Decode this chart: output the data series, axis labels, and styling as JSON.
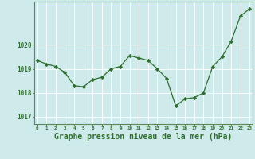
{
  "x": [
    0,
    1,
    2,
    3,
    4,
    5,
    6,
    7,
    8,
    9,
    10,
    11,
    12,
    13,
    14,
    15,
    16,
    17,
    18,
    19,
    20,
    21,
    22,
    23
  ],
  "y": [
    1019.35,
    1019.2,
    1019.1,
    1018.85,
    1018.3,
    1018.25,
    1018.55,
    1018.65,
    1019.0,
    1019.1,
    1019.55,
    1019.45,
    1019.35,
    1019.0,
    1018.6,
    1017.45,
    1017.75,
    1017.8,
    1018.0,
    1019.1,
    1019.5,
    1020.15,
    1021.2,
    1021.5
  ],
  "line_color": "#2d6e2d",
  "marker": "D",
  "marker_size": 2.2,
  "bg_color": "#ceeaea",
  "grid_color": "#b0d8d8",
  "axis_color": "#2d6e2d",
  "border_color": "#5a8a5a",
  "xlabel": "Graphe pression niveau de la mer (hPa)",
  "xlabel_fontsize": 7,
  "ytick_labels": [
    "1017",
    "1018",
    "1019",
    "1020"
  ],
  "ytick_vals": [
    1017,
    1018,
    1019,
    1020
  ],
  "xtick_vals": [
    0,
    1,
    2,
    3,
    4,
    5,
    6,
    7,
    8,
    9,
    10,
    11,
    12,
    13,
    14,
    15,
    16,
    17,
    18,
    19,
    20,
    21,
    22,
    23
  ],
  "ylim": [
    1016.7,
    1021.8
  ],
  "xlim": [
    -0.3,
    23.3
  ]
}
